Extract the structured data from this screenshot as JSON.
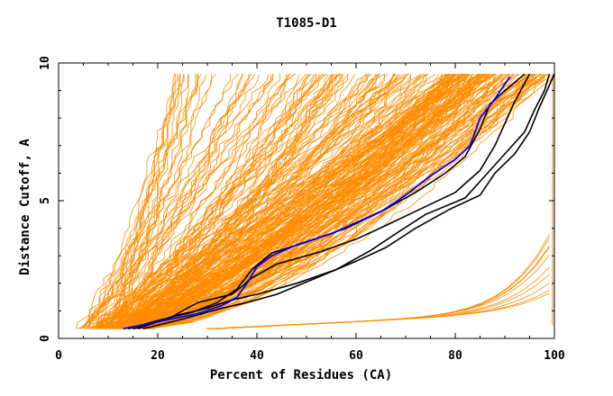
{
  "chart_data": {
    "type": "line",
    "title": "T1085-D1",
    "xlabel": "Percent of Residues (CA)",
    "ylabel": "Distance Cutoff, A",
    "xlim": [
      0,
      100
    ],
    "ylim": [
      0,
      10
    ],
    "x_ticks": [
      "0",
      "20",
      "40",
      "60",
      "80",
      "100"
    ],
    "y_ticks": [
      "0",
      "5",
      "10"
    ],
    "grid": false,
    "legend": "none",
    "colors": {
      "models": "#ff8c00",
      "highlight_dark": "#000000",
      "highlight_blue": "#0000ff"
    },
    "series": [
      {
        "color": "#0000ff",
        "points": [
          [
            13,
            0.35
          ],
          [
            20,
            0.6
          ],
          [
            28,
            0.9
          ],
          [
            33,
            1.2
          ],
          [
            36,
            1.5
          ],
          [
            38,
            2.0
          ],
          [
            40,
            2.6
          ],
          [
            43,
            3.0
          ],
          [
            48,
            3.4
          ],
          [
            55,
            3.8
          ],
          [
            60,
            4.2
          ],
          [
            65,
            4.6
          ],
          [
            70,
            5.2
          ],
          [
            75,
            5.9
          ],
          [
            80,
            6.5
          ],
          [
            83,
            7.0
          ],
          [
            85,
            8.0
          ],
          [
            88,
            8.7
          ],
          [
            91,
            9.5
          ]
        ]
      },
      {
        "color": "#000000",
        "points": [
          [
            14,
            0.35
          ],
          [
            20,
            0.65
          ],
          [
            27,
            0.95
          ],
          [
            32,
            1.3
          ],
          [
            36,
            1.8
          ],
          [
            39,
            2.5
          ],
          [
            43,
            3.1
          ],
          [
            50,
            3.5
          ],
          [
            58,
            4.0
          ],
          [
            65,
            4.6
          ],
          [
            72,
            5.3
          ],
          [
            78,
            6.0
          ],
          [
            82,
            6.6
          ],
          [
            85,
            7.6
          ],
          [
            87,
            8.5
          ],
          [
            90,
            9.0
          ],
          [
            94,
            9.6
          ]
        ]
      },
      {
        "color": "#000000",
        "points": [
          [
            15,
            0.35
          ],
          [
            22,
            0.7
          ],
          [
            28,
            1.3
          ],
          [
            35,
            1.6
          ],
          [
            39,
            2.2
          ],
          [
            44,
            2.7
          ],
          [
            52,
            3.1
          ],
          [
            60,
            3.6
          ],
          [
            66,
            4.1
          ],
          [
            73,
            4.7
          ],
          [
            80,
            5.3
          ],
          [
            85,
            6.1
          ],
          [
            88,
            7.0
          ],
          [
            90,
            7.8
          ],
          [
            92,
            8.6
          ],
          [
            95,
            9.6
          ]
        ]
      },
      {
        "color": "#000000",
        "points": [
          [
            16,
            0.35
          ],
          [
            23,
            0.8
          ],
          [
            30,
            1.1
          ],
          [
            35,
            1.4
          ],
          [
            40,
            1.6
          ],
          [
            48,
            2.0
          ],
          [
            56,
            2.5
          ],
          [
            63,
            3.2
          ],
          [
            68,
            3.8
          ],
          [
            74,
            4.5
          ],
          [
            82,
            5.1
          ],
          [
            86,
            5.9
          ],
          [
            90,
            6.7
          ],
          [
            94,
            7.5
          ],
          [
            96,
            8.3
          ],
          [
            98,
            9.0
          ],
          [
            99,
            9.6
          ]
        ]
      },
      {
        "color": "#000000",
        "points": [
          [
            17,
            0.35
          ],
          [
            25,
            0.7
          ],
          [
            33,
            1.1
          ],
          [
            38,
            1.3
          ],
          [
            44,
            1.6
          ],
          [
            52,
            2.2
          ],
          [
            60,
            2.8
          ],
          [
            66,
            3.3
          ],
          [
            72,
            4.0
          ],
          [
            79,
            4.7
          ],
          [
            85,
            5.2
          ],
          [
            88,
            6.0
          ],
          [
            92,
            6.7
          ],
          [
            95,
            7.5
          ],
          [
            97,
            8.4
          ],
          [
            99,
            9.2
          ],
          [
            100,
            9.6
          ]
        ]
      }
    ]
  }
}
